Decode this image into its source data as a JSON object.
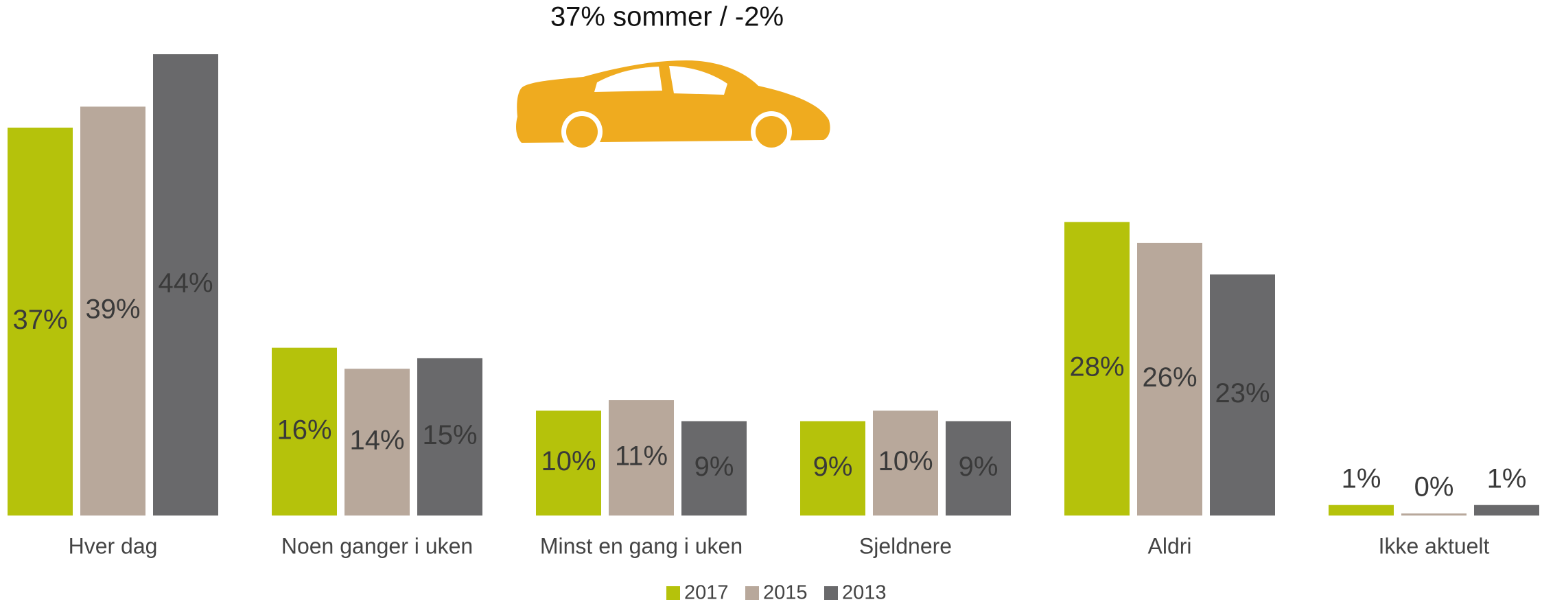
{
  "chart_data": {
    "type": "bar",
    "title": "37% sommer / -2%",
    "categories": [
      "Hver dag",
      "Noen ganger i uken",
      "Minst en gang i uken",
      "Sjeldnere",
      "Aldri",
      "Ikke aktuelt"
    ],
    "series": [
      {
        "name": "2017",
        "color": "#b5c20b",
        "values": [
          37,
          16,
          10,
          9,
          28,
          1
        ],
        "value_labels": [
          "37%",
          "16%",
          "10%",
          "9%",
          "28%",
          "1%"
        ]
      },
      {
        "name": "2015",
        "color": "#b8a89b",
        "values": [
          39,
          14,
          11,
          10,
          26,
          0
        ],
        "value_labels": [
          "39%",
          "14%",
          "11%",
          "10%",
          "26%",
          "0%"
        ]
      },
      {
        "name": "2013",
        "color": "#69696b",
        "values": [
          44,
          15,
          9,
          9,
          23,
          1
        ],
        "value_labels": [
          "44%",
          "15%",
          "9%",
          "9%",
          "23%",
          "1%"
        ]
      }
    ],
    "legend": "bottom"
  }
}
